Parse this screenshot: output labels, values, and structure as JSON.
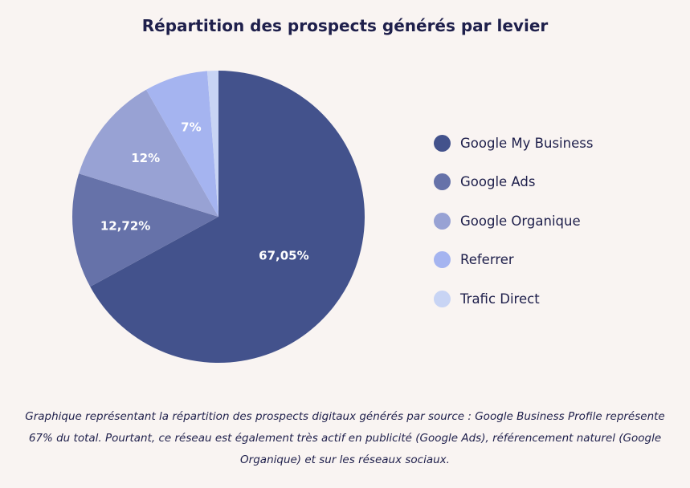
{
  "chart_data": {
    "type": "pie",
    "title": "Répartition des prospects générés par levier",
    "start": "top",
    "direction": "clockwise",
    "slices": [
      {
        "name": "Google My Business",
        "value": 67.05,
        "label": "67,05%",
        "color": "#43528c"
      },
      {
        "name": "Google Ads",
        "value": 12.72,
        "label": "12,72%",
        "color": "#6672a9"
      },
      {
        "name": "Google Organique",
        "value": 12,
        "label": "12%",
        "color": "#98a2d4"
      },
      {
        "name": "Referrer",
        "value": 7,
        "label": "7%",
        "color": "#a5b4f0"
      },
      {
        "name": "Trafic Direct",
        "value": 1.23,
        "label": "",
        "color": "#c8d4f4"
      }
    ],
    "legend_position": "right"
  },
  "caption": "Graphique représentant la répartition des prospects digitaux générés par source : Google Business Profile représente 67% du total. Pourtant, ce réseau est également très actif en publicité (Google Ads), référencement naturel (Google Organique) et sur les réseaux sociaux."
}
